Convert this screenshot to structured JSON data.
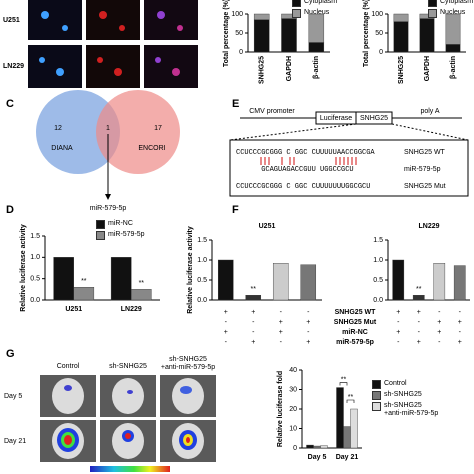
{
  "panel_labels": [
    "C",
    "D",
    "E",
    "F",
    "G"
  ],
  "panel_a": {
    "rows": [
      "U251",
      "LN229"
    ]
  },
  "venn": {
    "left_count": 12,
    "overlap_count": 1,
    "right_count": 17,
    "left_label": "DIANA",
    "right_label": "ENCORI",
    "result": "miR-579-5p"
  },
  "construct": {
    "promoter": "CMV promoter",
    "reporter": "Luciferase",
    "insert": "SNHG25",
    "tail": "poly A",
    "sequences": [
      {
        "seq": "CCUCCCGCGGG C GGC CUUUUUAACCGGCGA",
        "name": "SNHG25 WT"
      },
      {
        "seq": "      GCAGUAGACCGUU UGGCCGCU",
        "name": "miR-579-5p"
      },
      {
        "seq": "CCUCCCGCGGG C GGC CUUUUUUUGGCGCU",
        "name": "SNHG25 Mut"
      }
    ]
  },
  "treatment_table": {
    "rows": [
      {
        "label": "SNHG25 WT",
        "marks": [
          "+",
          "+",
          "-",
          "-"
        ]
      },
      {
        "label": "SNHG25 Mut",
        "marks": [
          "-",
          "-",
          "+",
          "+"
        ]
      },
      {
        "label": "miR-NC",
        "marks": [
          "+",
          "-",
          "+",
          "-"
        ]
      },
      {
        "label": "miR-579-5p",
        "marks": [
          "-",
          "+",
          "-",
          "+"
        ]
      }
    ]
  },
  "imaging": {
    "groups": [
      "Control",
      "sh-SNHG25",
      "sh-SNHG25\n+anti-miR-579-5p"
    ],
    "days": [
      "Day 5",
      "Day 21"
    ]
  },
  "chart_data": [
    {
      "type": "stacked_bar",
      "ylabel": "Total percentage (%)",
      "categories": [
        "SNHG25",
        "GAPDH",
        "β-actin"
      ],
      "series": [
        {
          "name": "Cytoplasm",
          "color": "#111111",
          "values": [
            85,
            88,
            25
          ]
        },
        {
          "name": "Nucleus",
          "color": "#999999",
          "values": [
            15,
            12,
            75
          ]
        }
      ],
      "ylim": [
        0,
        100
      ],
      "yticks": [
        0,
        50,
        100
      ]
    },
    {
      "type": "stacked_bar",
      "ylabel": "Total percentage (%)",
      "categories": [
        "SNHG25",
        "GAPDH",
        "β-actin"
      ],
      "series": [
        {
          "name": "Cytoplasm",
          "color": "#111111",
          "values": [
            80,
            88,
            20
          ]
        },
        {
          "name": "Nucleus",
          "color": "#999999",
          "values": [
            20,
            12,
            80
          ]
        }
      ],
      "ylim": [
        0,
        100
      ],
      "yticks": [
        0,
        50,
        100
      ]
    },
    {
      "type": "bar",
      "ylabel": "Relative luciferase activity",
      "categories": [
        "U251",
        "LN229"
      ],
      "series": [
        {
          "name": "miR-NC",
          "color": "#111111",
          "values": [
            1.0,
            1.0
          ]
        },
        {
          "name": "miR-579-5p",
          "color": "#888888",
          "values": [
            0.3,
            0.25
          ]
        }
      ],
      "ylim": [
        0,
        1.5
      ],
      "yticks": [
        {
          "value": 0,
          "label": "0.0"
        },
        {
          "value": 0.5,
          "label": "0.5"
        },
        {
          "value": 1,
          "label": "1.0"
        },
        {
          "value": 1.5,
          "label": "1.5"
        }
      ],
      "annotations": [
        {
          "label": "**",
          "on": [
            "chart_data.2.series.1.values.0"
          ]
        },
        {
          "label": "**",
          "on": [
            "chart_data.2.series.1.values.1"
          ]
        }
      ]
    },
    {
      "type": "bar",
      "title": "U251",
      "ylabel": "Relative luciferase activity",
      "categories": [
        null,
        null,
        null,
        null
      ],
      "values": [
        1.0,
        0.12,
        0.92,
        0.88
      ],
      "colors": [
        "#111111",
        "#333333",
        "#cccccc",
        "#777777"
      ],
      "ylim": [
        0,
        1.5
      ],
      "yticks": [
        {
          "value": 0,
          "label": "0.0"
        },
        {
          "value": 0.5,
          "label": "0.5"
        },
        {
          "value": 1,
          "label": "1.0"
        },
        {
          "value": 1.5,
          "label": "1.5"
        }
      ],
      "annotations": [
        {
          "label": "**",
          "on": [
            "chart_data.3.values.1"
          ]
        }
      ]
    },
    {
      "type": "bar",
      "title": "LN229",
      "categories": [
        null,
        null,
        null,
        null
      ],
      "values": [
        1.0,
        0.12,
        0.92,
        0.86
      ],
      "colors": [
        "#111111",
        "#333333",
        "#cccccc",
        "#777777"
      ],
      "ylim": [
        0,
        1.5
      ],
      "yticks": [
        {
          "value": 0,
          "label": "0.0"
        },
        {
          "value": 0.5,
          "label": "0.5"
        },
        {
          "value": 1,
          "label": "1.0"
        },
        {
          "value": 1.5,
          "label": "1.5"
        }
      ],
      "annotations": [
        {
          "label": "**",
          "on": [
            "chart_data.4.values.1"
          ]
        }
      ]
    },
    {
      "type": "bar",
      "ylabel": "Relative luciferase fold",
      "categories": [
        "Day 5",
        "Day 21"
      ],
      "series": [
        {
          "name": "Control",
          "color": "#111111",
          "values": [
            1.5,
            31
          ]
        },
        {
          "name": "sh-SNHG25",
          "color": "#777777",
          "values": [
            1.0,
            11
          ]
        },
        {
          "name": "sh-SNHG25\n+anti-miR-579-5p",
          "color": "#dddddd",
          "values": [
            1.2,
            20
          ]
        }
      ],
      "ylim": [
        0,
        40
      ],
      "yticks": [
        0,
        10,
        20,
        30,
        40
      ],
      "annotations": [
        {
          "label": "**",
          "on": [
            "chart_data.5.series.0.values.1",
            "chart_data.5.series.1.values.1"
          ]
        },
        {
          "label": "**",
          "on": [
            "chart_data.5.series.1.values.1",
            "chart_data.5.series.2.values.1"
          ]
        }
      ]
    }
  ]
}
